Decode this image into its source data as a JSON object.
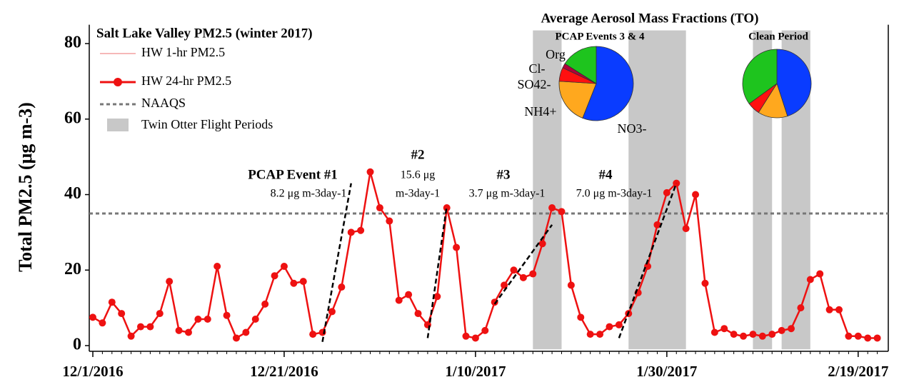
{
  "chart_data": {
    "type": "line",
    "legend_title": "Salt Lake Valley PM2.5 (winter 2017)",
    "y_label": "Total PM2.5 (μg m-3)",
    "x": [
      "12/1/2016",
      "12/2/2016",
      "12/3/2016",
      "12/4/2016",
      "12/5/2016",
      "12/6/2016",
      "12/7/2016",
      "12/8/2016",
      "12/9/2016",
      "12/10/2016",
      "12/11/2016",
      "12/12/2016",
      "12/13/2016",
      "12/14/2016",
      "12/15/2016",
      "12/16/2016",
      "12/17/2016",
      "12/18/2016",
      "12/19/2016",
      "12/20/2016",
      "12/21/2016",
      "12/22/2016",
      "12/23/2016",
      "12/24/2016",
      "12/25/2016",
      "12/26/2016",
      "12/27/2016",
      "12/28/2016",
      "12/29/2016",
      "12/30/2016",
      "12/31/2016",
      "1/1/2017",
      "1/2/2017",
      "1/3/2017",
      "1/4/2017",
      "1/5/2017",
      "1/6/2017",
      "1/7/2017",
      "1/8/2017",
      "1/9/2017",
      "1/10/2017",
      "1/11/2017",
      "1/12/2017",
      "1/13/2017",
      "1/14/2017",
      "1/15/2017",
      "1/16/2017",
      "1/17/2017",
      "1/18/2017",
      "1/19/2017",
      "1/20/2017",
      "1/21/2017",
      "1/22/2017",
      "1/23/2017",
      "1/24/2017",
      "1/25/2017",
      "1/26/2017",
      "1/27/2017",
      "1/28/2017",
      "1/29/2017",
      "1/30/2017",
      "1/31/2017",
      "2/1/2017",
      "2/2/2017",
      "2/3/2017",
      "2/4/2017",
      "2/5/2017",
      "2/6/2017",
      "2/7/2017",
      "2/8/2017",
      "2/9/2017",
      "2/10/2017",
      "2/11/2017",
      "2/12/2017",
      "2/13/2017",
      "2/14/2017",
      "2/15/2017",
      "2/16/2017",
      "2/17/2017",
      "2/18/2017",
      "2/19/2017",
      "2/20/2017",
      "2/21/2017"
    ],
    "series": [
      {
        "name": "HW 1-hr PM2.5",
        "color": "#f4a0a0"
      },
      {
        "name": "HW 24-hr PM2.5",
        "color": "#ee1111",
        "marker": "circle",
        "values": [
          7.5,
          6,
          11.5,
          8.5,
          2.5,
          5,
          5,
          8.5,
          17,
          4,
          3.5,
          7,
          7,
          21,
          8,
          2,
          3.5,
          7,
          11,
          18.5,
          21,
          16.5,
          17,
          3,
          3.5,
          9,
          15.5,
          30,
          30.5,
          46,
          36.5,
          33,
          12,
          13.5,
          8.5,
          5.5,
          13,
          36.5,
          26,
          2.5,
          2,
          4,
          11.5,
          16,
          20,
          18,
          19,
          27,
          36.5,
          35.5,
          16,
          7.5,
          3,
          3,
          5,
          5.5,
          8.5,
          14,
          21,
          32,
          40.5,
          43,
          31,
          40,
          16.5,
          3.5,
          4.5,
          3,
          2.5,
          3,
          2.5,
          3,
          4,
          4.5,
          10,
          17.5,
          19,
          9.5,
          9.5,
          2.5,
          2.5,
          2,
          2
        ]
      }
    ],
    "naaqs": {
      "name": "NAAQS",
      "value": 35,
      "color": "#777777"
    },
    "flight_periods": {
      "name": "Twin Otter Flight Periods",
      "color": "#c8c8c8",
      "ranges": [
        [
          "1/16/2017",
          "1/19/2017"
        ],
        [
          "1/26/2017",
          "2/1/2017"
        ],
        [
          "2/8/2017",
          "2/10/2017"
        ],
        [
          "2/11/2017",
          "2/14/2017"
        ]
      ]
    },
    "trend_lines": [
      {
        "x": [
          "12/25/2016",
          "12/28/2016"
        ],
        "y": [
          1,
          43
        ]
      },
      {
        "x": [
          "1/5/2017",
          "1/7/2017"
        ],
        "y": [
          2,
          37
        ]
      },
      {
        "x": [
          "1/12/2017",
          "1/18/2017"
        ],
        "y": [
          11,
          32
        ]
      },
      {
        "x": [
          "1/25/2017",
          "1/31/2017"
        ],
        "y": [
          2,
          43
        ]
      }
    ],
    "annotations": [
      "PCAP Event #1",
      "8.2 μg m-3day-1",
      "#2",
      "15.6 μg",
      "m-3day-1",
      "#3",
      "3.7 μg m-3day-1",
      "#4",
      "7.0 μg m-3day-1"
    ],
    "xlim": [
      "12/1/2016",
      "2/22/2017"
    ],
    "xticks": [
      "12/1/2016",
      "12/21/2016",
      "1/10/2017",
      "1/30/2017",
      "2/19/2017"
    ],
    "ylim": [
      -1,
      85
    ],
    "yticks": [
      0,
      20,
      40,
      60,
      80
    ],
    "pies_title": "Average Aerosol Mass Fractions (TO)",
    "pies": [
      {
        "title": "PCAP Events 3 & 4",
        "labels": [
          "NO3-",
          "NH4+",
          "SO42-",
          "Cl-",
          "Org"
        ],
        "values": [
          56,
          20,
          6,
          2,
          16
        ],
        "colors": [
          "#0a3cff",
          "#ffa81e",
          "#ff1010",
          "#b0003a",
          "#1ec41e"
        ]
      },
      {
        "title": "Clean Period",
        "values": [
          45,
          14,
          6,
          35
        ],
        "colors": [
          "#0a3cff",
          "#ffa81e",
          "#ff1010",
          "#1ec41e"
        ]
      }
    ]
  }
}
